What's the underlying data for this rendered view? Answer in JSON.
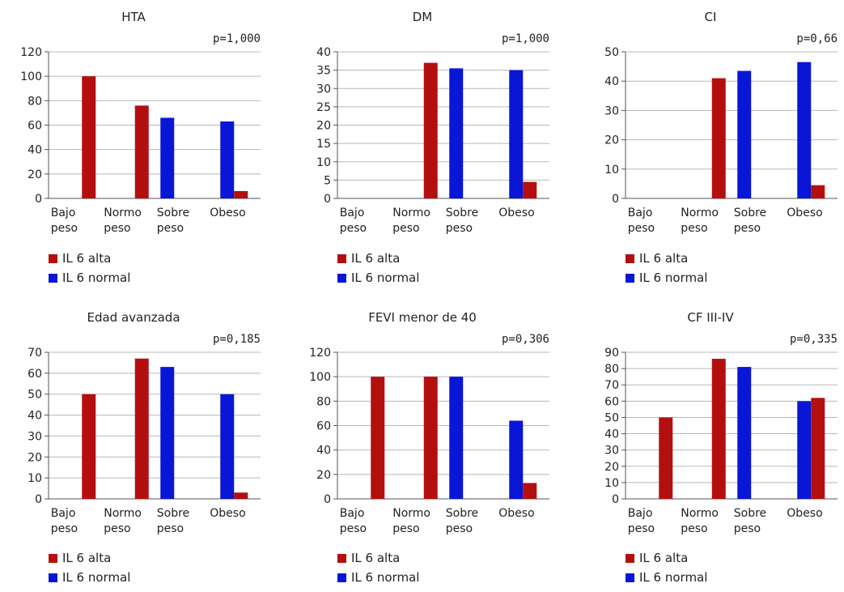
{
  "colors": {
    "alta": "#b30f0f",
    "normal": "#0a16d6"
  },
  "chart_data": [
    {
      "type": "bar",
      "title": "HTA",
      "pvalue": "p=1,000",
      "categories": [
        [
          "Bajo",
          "peso"
        ],
        [
          "Normo",
          "peso"
        ],
        [
          "Sobre",
          "peso"
        ],
        [
          "Obeso",
          ""
        ]
      ],
      "ylim": [
        0,
        120
      ],
      "yticks": [
        0,
        20,
        40,
        60,
        80,
        100,
        120
      ],
      "series": [
        {
          "name": "IL 6 alta",
          "values": [
            100,
            76,
            0,
            6
          ]
        },
        {
          "name": "IL 6 normal",
          "values": [
            0,
            0,
            66,
            63
          ]
        }
      ],
      "legend": [
        "IL 6 alta",
        "IL 6 normal"
      ]
    },
    {
      "type": "bar",
      "title": "DM",
      "pvalue": "p=1,000",
      "categories": [
        [
          "Bajo",
          "peso"
        ],
        [
          "Normo",
          "peso"
        ],
        [
          "Sobre",
          "peso"
        ],
        [
          "Obeso",
          ""
        ]
      ],
      "ylim": [
        0,
        40
      ],
      "yticks": [
        0,
        5,
        10,
        15,
        20,
        25,
        30,
        35,
        40
      ],
      "series": [
        {
          "name": "IL 6 alta",
          "values": [
            0,
            37,
            0,
            4.5
          ]
        },
        {
          "name": "IL 6 normal",
          "values": [
            0,
            0,
            35.5,
            35
          ]
        }
      ],
      "legend": [
        "IL 6 alta",
        "IL 6 normal"
      ]
    },
    {
      "type": "bar",
      "title": "CI",
      "pvalue": "p=0,66",
      "categories": [
        [
          "Bajo",
          "peso"
        ],
        [
          "Normo",
          "peso"
        ],
        [
          "Sobre",
          "peso"
        ],
        [
          "Obeso",
          ""
        ]
      ],
      "ylim": [
        0,
        50
      ],
      "yticks": [
        0,
        10,
        20,
        30,
        40,
        50
      ],
      "series": [
        {
          "name": "IL 6 alta",
          "values": [
            0,
            41,
            0,
            4.5
          ]
        },
        {
          "name": "IL 6 normal",
          "values": [
            0,
            0,
            43.5,
            46.5
          ]
        }
      ],
      "legend": [
        "IL 6 alta",
        "IL 6 normal"
      ]
    },
    {
      "type": "bar",
      "title": "Edad avanzada",
      "pvalue": "p=0,185",
      "categories": [
        [
          "Bajo",
          "peso"
        ],
        [
          "Normo",
          "peso"
        ],
        [
          "Sobre",
          "peso"
        ],
        [
          "Obeso",
          ""
        ]
      ],
      "ylim": [
        0,
        70
      ],
      "yticks": [
        0,
        10,
        20,
        30,
        40,
        50,
        60,
        70
      ],
      "series": [
        {
          "name": "IL 6 alta",
          "values": [
            50,
            67,
            0,
            3
          ]
        },
        {
          "name": "IL 6 normal",
          "values": [
            0,
            0,
            63,
            50
          ]
        }
      ],
      "legend": [
        "IL 6 alta",
        "IL 6 normal"
      ]
    },
    {
      "type": "bar",
      "title": "FEVI menor de 40",
      "pvalue": "p=0,306",
      "categories": [
        [
          "Bajo",
          "peso"
        ],
        [
          "Normo",
          "peso"
        ],
        [
          "Sobre",
          "peso"
        ],
        [
          "Obeso",
          ""
        ]
      ],
      "ylim": [
        0,
        120
      ],
      "yticks": [
        0,
        20,
        40,
        60,
        80,
        100,
        120
      ],
      "series": [
        {
          "name": "IL 6 alta",
          "values": [
            100,
            100,
            0,
            13
          ]
        },
        {
          "name": "IL 6 normal",
          "values": [
            0,
            0,
            100,
            64
          ]
        }
      ],
      "legend": [
        "IL 6 alta",
        "IL 6 normal"
      ]
    },
    {
      "type": "bar",
      "title": "CF III-IV",
      "pvalue": "p=0,335",
      "categories": [
        [
          "Bajo",
          "peso"
        ],
        [
          "Normo",
          "peso"
        ],
        [
          "Sobre",
          "peso"
        ],
        [
          "Obeso",
          ""
        ]
      ],
      "ylim": [
        0,
        90
      ],
      "yticks": [
        0,
        10,
        20,
        30,
        40,
        50,
        60,
        70,
        80,
        90
      ],
      "series": [
        {
          "name": "IL 6 alta",
          "values": [
            50,
            86,
            0,
            62
          ]
        },
        {
          "name": "IL 6 normal",
          "values": [
            0,
            0,
            81,
            60
          ]
        }
      ],
      "legend": [
        "IL 6 alta",
        "IL 6 normal"
      ]
    }
  ]
}
